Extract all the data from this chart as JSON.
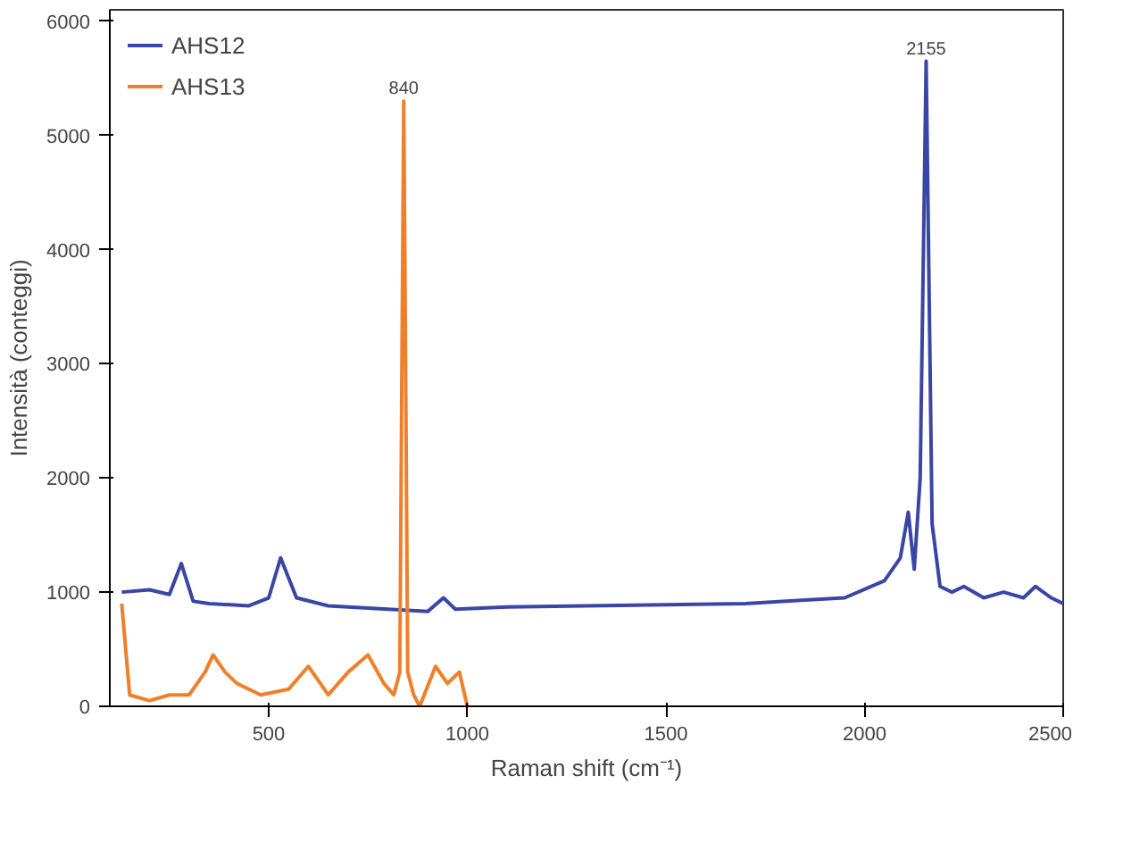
{
  "chart_data": {
    "type": "line",
    "xlabel": "Raman shift (cm⁻¹)",
    "ylabel": "Intensità (conteggi)",
    "xlim": [
      100,
      2500
    ],
    "ylim": [
      0,
      6100
    ],
    "xticks": [
      500,
      1000,
      1500,
      2000,
      2500
    ],
    "yticks": [
      0,
      1000,
      2000,
      3000,
      4000,
      5000,
      6000
    ],
    "grid": false,
    "legend": "top left",
    "annotations": [
      {
        "text": "840",
        "x": 840,
        "y": 5300
      },
      {
        "text": "2155",
        "x": 2155,
        "y": 5650
      }
    ],
    "series": [
      {
        "name": "AHS12",
        "color": "#3a46a6",
        "x": [
          130,
          200,
          250,
          280,
          310,
          350,
          450,
          500,
          530,
          570,
          650,
          800,
          900,
          940,
          970,
          1100,
          1300,
          1500,
          1700,
          1850,
          1950,
          2050,
          2090,
          2110,
          2125,
          2140,
          2155,
          2170,
          2190,
          2220,
          2250,
          2300,
          2350,
          2400,
          2430,
          2470,
          2500
        ],
        "values": [
          1000,
          1020,
          980,
          1250,
          920,
          900,
          880,
          950,
          1300,
          950,
          880,
          850,
          830,
          950,
          850,
          870,
          880,
          890,
          900,
          930,
          950,
          1100,
          1300,
          1700,
          1200,
          2000,
          5650,
          1600,
          1050,
          1000,
          1050,
          950,
          1000,
          950,
          1050,
          950,
          900
        ]
      },
      {
        "name": "AHS13",
        "color": "#f07f2a",
        "x": [
          130,
          150,
          200,
          250,
          300,
          340,
          360,
          390,
          420,
          480,
          550,
          600,
          650,
          700,
          750,
          790,
          815,
          830,
          840,
          850,
          865,
          880,
          920,
          950,
          980,
          1000
        ],
        "values": [
          900,
          100,
          50,
          100,
          100,
          300,
          450,
          300,
          200,
          100,
          150,
          350,
          100,
          300,
          450,
          200,
          100,
          300,
          5300,
          300,
          100,
          0,
          350,
          200,
          300,
          0
        ]
      }
    ]
  }
}
